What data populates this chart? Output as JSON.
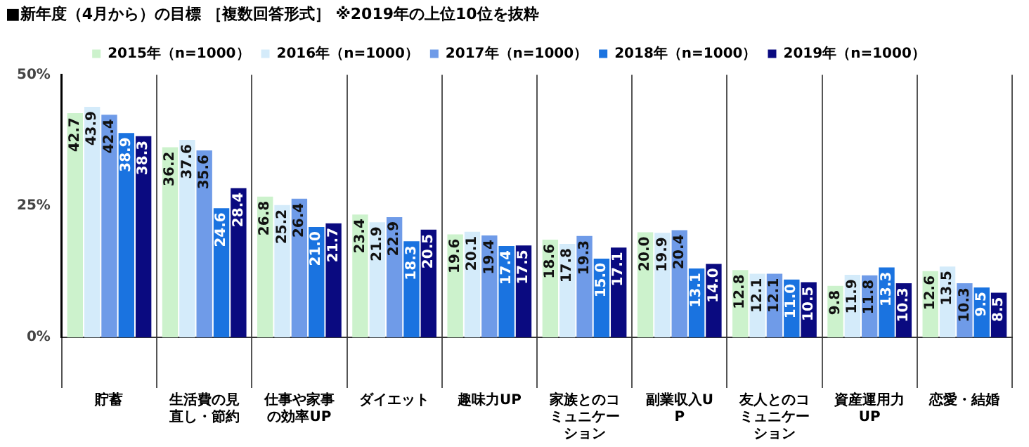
{
  "chart_data": {
    "type": "bar",
    "title": "■新年度（4月から）の目標 ［複数回答形式］ ※2019年の上位10位を抜粋",
    "categories": [
      "貯蓄",
      "生活費の見直し・節約",
      "仕事や家事の効率UP",
      "ダイエット",
      "趣味力UP",
      "家族とのコミュニケーション",
      "副業収入UP",
      "友人とのコミュニケーション",
      "資産運用力UP",
      "恋愛・結婚"
    ],
    "series": [
      {
        "name": "2015年（n=1000）",
        "color": "#ccf2cc",
        "values": [
          42.7,
          36.2,
          26.8,
          23.4,
          19.6,
          18.6,
          20.0,
          12.8,
          9.8,
          12.6
        ]
      },
      {
        "name": "2016年（n=1000）",
        "color": "#d4ebfa",
        "values": [
          43.9,
          37.6,
          25.2,
          21.9,
          20.1,
          17.8,
          19.9,
          12.1,
          11.9,
          13.5
        ]
      },
      {
        "name": "2017年（n=1000）",
        "color": "#6f9be8",
        "values": [
          42.4,
          35.6,
          26.4,
          22.9,
          19.4,
          19.3,
          20.4,
          12.1,
          11.8,
          10.3
        ]
      },
      {
        "name": "2018年（n=1000）",
        "color": "#1a73e0",
        "values": [
          38.9,
          24.6,
          21.0,
          18.3,
          17.4,
          15.0,
          13.1,
          11.0,
          13.3,
          9.5
        ]
      },
      {
        "name": "2019年（n=1000）",
        "color": "#0a0a80",
        "values": [
          38.3,
          28.4,
          21.7,
          20.5,
          17.5,
          17.1,
          14.0,
          10.5,
          10.3,
          8.5
        ]
      }
    ],
    "ylim": [
      0,
      50
    ],
    "yticks": [
      {
        "value": 0,
        "label": "0%"
      },
      {
        "value": 25,
        "label": "25%"
      },
      {
        "value": 50,
        "label": "50%"
      }
    ],
    "value_labels": [
      [
        "42.7",
        "36.2",
        "26.8",
        "23.4",
        "19.6",
        "18.6",
        "20.0",
        "12.8",
        "9.8",
        "12.6"
      ],
      [
        "43.9",
        "37.6",
        "25.2",
        "21.9",
        "20.1",
        "17.8",
        "19.9",
        "12.1",
        "11.9",
        "13.5"
      ],
      [
        "42.4",
        "35.6",
        "26.4",
        "22.9",
        "19.4",
        "19.3",
        "20.4",
        "12.1",
        "11.8",
        "10.3"
      ],
      [
        "38.9",
        "24.6",
        "21.0",
        "18.3",
        "17.4",
        "15.0",
        "13.1",
        "11.0",
        "13.3",
        "9.5"
      ],
      [
        "38.3",
        "28.4",
        "21.7",
        "20.5",
        "17.5",
        "17.1",
        "14.0",
        "10.5",
        "10.3",
        "8.5"
      ]
    ],
    "grid": "x",
    "legend": "top"
  }
}
